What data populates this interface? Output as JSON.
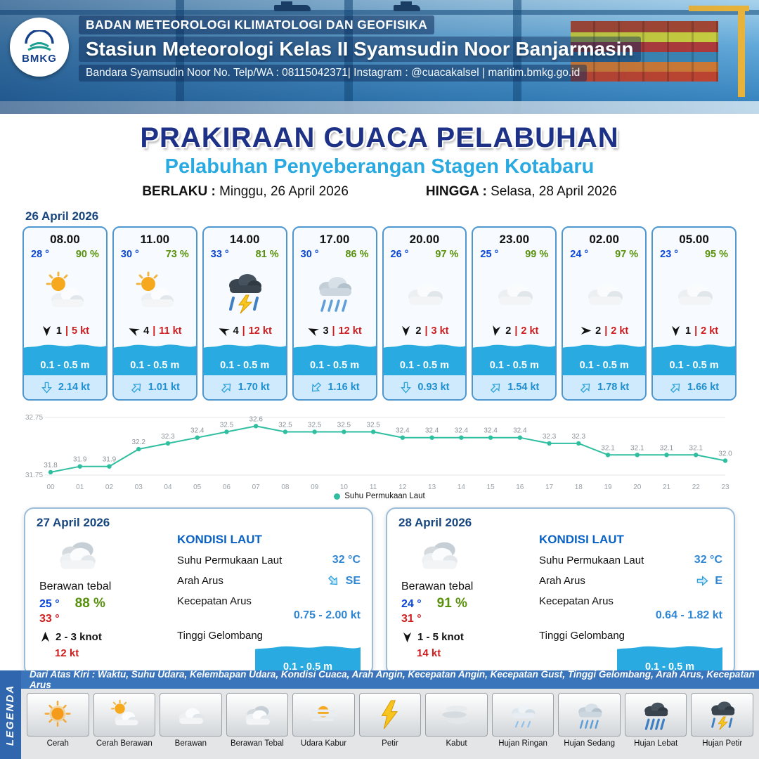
{
  "header": {
    "org": "BADAN METEOROLOGI KLIMATOLOGI DAN GEOFISIKA",
    "station": "Stasiun Meteorologi Kelas II Syamsudin Noor Banjarmasin",
    "contact": "Bandara Syamsudin Noor No. Telp/WA : 08115042371| Instagram : @cuacakalsel | maritim.bmkg.go.id",
    "logo_text": "BMKG"
  },
  "title": {
    "main": "PRAKIRAAN CUACA PELABUHAN",
    "subtitle": "Pelabuhan Penyeberangan Stagen Kotabaru",
    "berlaku_label": "BERLAKU :",
    "berlaku_value": "Minggu, 26 April 2026",
    "hingga_label": "HINGGA :",
    "hingga_value": "Selasa, 28 April 2026"
  },
  "forecast": {
    "date": "26 April 2026",
    "cards": [
      {
        "time": "08.00",
        "temp": "28 °",
        "humidity": "90 %",
        "icon": "cerah-berawan",
        "wind_speed": "1",
        "wind_gust": "5 kt",
        "wind_deg": 90,
        "wave": "0.1 - 0.5 m",
        "current_speed": "2.14 kt",
        "current_deg": 90
      },
      {
        "time": "11.00",
        "temp": "30 °",
        "humidity": "73 %",
        "icon": "cerah-berawan",
        "wind_speed": "4",
        "wind_gust": "11 kt",
        "wind_deg": 205,
        "wave": "0.1 - 0.5 m",
        "current_speed": "1.01 kt",
        "current_deg": 315
      },
      {
        "time": "14.00",
        "temp": "33 °",
        "humidity": "81 %",
        "icon": "hujan-petir",
        "wind_speed": "4",
        "wind_gust": "12 kt",
        "wind_deg": 205,
        "wave": "0.1 - 0.5 m",
        "current_speed": "1.70 kt",
        "current_deg": 315
      },
      {
        "time": "17.00",
        "temp": "30 °",
        "humidity": "86 %",
        "icon": "hujan-sedang",
        "wind_speed": "3",
        "wind_gust": "12 kt",
        "wind_deg": 205,
        "wave": "0.1 - 0.5 m",
        "current_speed": "1.16 kt",
        "current_deg": 135
      },
      {
        "time": "20.00",
        "temp": "26 °",
        "humidity": "97 %",
        "icon": "berawan",
        "wind_speed": "2",
        "wind_gust": "3 kt",
        "wind_deg": 90,
        "wave": "0.1 - 0.5 m",
        "current_speed": "0.93 kt",
        "current_deg": 90
      },
      {
        "time": "23.00",
        "temp": "25 °",
        "humidity": "99 %",
        "icon": "berawan",
        "wind_speed": "2",
        "wind_gust": "2 kt",
        "wind_deg": 100,
        "wave": "0.1 - 0.5 m",
        "current_speed": "1.54 kt",
        "current_deg": 315
      },
      {
        "time": "02.00",
        "temp": "24 °",
        "humidity": "97 %",
        "icon": "berawan",
        "wind_speed": "2",
        "wind_gust": "2 kt",
        "wind_deg": 0,
        "wave": "0.1 - 0.5 m",
        "current_speed": "1.78 kt",
        "current_deg": 315
      },
      {
        "time": "05.00",
        "temp": "23 °",
        "humidity": "95 %",
        "icon": "berawan",
        "wind_speed": "1",
        "wind_gust": "2 kt",
        "wind_deg": 90,
        "wave": "0.1 - 0.5 m",
        "current_speed": "1.66 kt",
        "current_deg": 315
      }
    ]
  },
  "chart_data": {
    "type": "line",
    "title": "",
    "xlabel": "",
    "ylabel": "",
    "x": [
      "00",
      "01",
      "02",
      "03",
      "04",
      "05",
      "06",
      "07",
      "08",
      "09",
      "10",
      "11",
      "12",
      "13",
      "14",
      "15",
      "16",
      "17",
      "18",
      "19",
      "20",
      "21",
      "22",
      "23"
    ],
    "series": [
      {
        "name": "Suhu Permukaan Laut",
        "values": [
          31.8,
          31.9,
          31.9,
          32.2,
          32.3,
          32.4,
          32.5,
          32.6,
          32.5,
          32.5,
          32.5,
          32.5,
          32.4,
          32.4,
          32.4,
          32.4,
          32.4,
          32.3,
          32.3,
          32.1,
          32.1,
          32.1,
          32.1,
          32.0
        ]
      }
    ],
    "ylim": [
      31.75,
      32.75
    ],
    "line_color": "#2fbfa0",
    "legend_position": "bottom",
    "grid": true
  },
  "daily": [
    {
      "date": "27 April 2026",
      "condition": "Berawan tebal",
      "icon": "berawan-tebal",
      "temp_min": "25 °",
      "humidity": "88 %",
      "temp_max": "33 °",
      "wind": "2 - 3 knot",
      "wind_deg": 270,
      "gust": "12 kt",
      "sea": {
        "title": "KONDISI LAUT",
        "sst_label": "Suhu Permukaan Laut",
        "sst_value": "32 °C",
        "dir_label": "Arah Arus",
        "dir_value": "SE",
        "dir_deg": 45,
        "speed_label": "Kecepatan Arus",
        "speed_value": "0.75 - 2.00 kt",
        "wave_label": "Tinggi Gelombang",
        "wave_value": "0.1 - 0.5 m"
      }
    },
    {
      "date": "28 April 2026",
      "condition": "Berawan tebal",
      "icon": "berawan-tebal",
      "temp_min": "24 °",
      "humidity": "91 %",
      "temp_max": "31 °",
      "wind": "1 - 5 knot",
      "wind_deg": 90,
      "gust": "14 kt",
      "sea": {
        "title": "KONDISI LAUT",
        "sst_label": "Suhu Permukaan Laut",
        "sst_value": "32 °C",
        "dir_label": "Arah Arus",
        "dir_value": "E",
        "dir_deg": 0,
        "speed_label": "Kecepatan Arus",
        "speed_value": "0.64 - 1.82 kt",
        "wave_label": "Tinggi Gelombang",
        "wave_value": "0.1 - 0.5 m"
      }
    }
  ],
  "legend": {
    "note": "Dari Atas Kiri : Waktu, Suhu Udara, Kelembapan Udara, Kondisi Cuaca, Arah Angin, Kecepatan Angin, Kecepatan Gust, Tinggi Gelombang, Arah Arus, Kecepatan Arus",
    "vertical_label": "LEGENDA",
    "items": [
      {
        "label": "Cerah",
        "icon": "cerah"
      },
      {
        "label": "Cerah Berawan",
        "icon": "cerah-berawan"
      },
      {
        "label": "Berawan",
        "icon": "berawan"
      },
      {
        "label": "Berawan Tebal",
        "icon": "berawan-tebal"
      },
      {
        "label": "Udara Kabur",
        "icon": "udara-kabur"
      },
      {
        "label": "Petir",
        "icon": "petir"
      },
      {
        "label": "Kabut",
        "icon": "kabut"
      },
      {
        "label": "Hujan Ringan",
        "icon": "hujan-ringan"
      },
      {
        "label": "Hujan Sedang",
        "icon": "hujan-sedang"
      },
      {
        "label": "Hujan Lebat",
        "icon": "hujan-lebat"
      },
      {
        "label": "Hujan Petir",
        "icon": "hujan-petir"
      }
    ]
  },
  "colors": {
    "accent_blue": "#29abe2",
    "navy": "#1d3287",
    "green": "#58910c",
    "red": "#cf1d1d",
    "teal_line": "#2fbfa0"
  }
}
